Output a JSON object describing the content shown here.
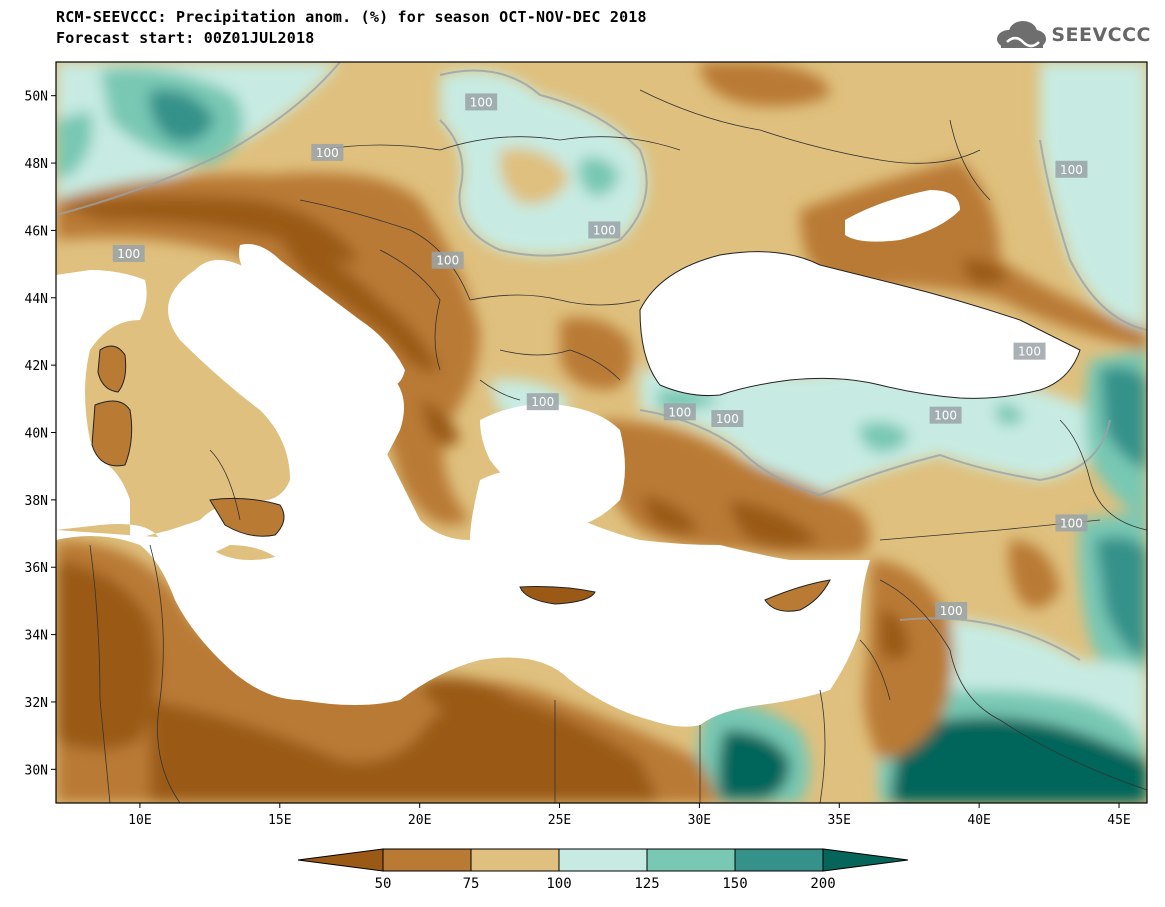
{
  "header": {
    "title_line_1": "RCM-SEEVCCC: Precipitation anom. (%) for season OCT-NOV-DEC 2018",
    "title_line_2": "Forecast start: 00Z01JUL2018"
  },
  "logo": {
    "text": "SEEVCCC",
    "icon": "cloud-icon"
  },
  "map": {
    "projection": "lat-lon",
    "lon_range": [
      7,
      46
    ],
    "lat_range": [
      29,
      51
    ],
    "x_ticks": [
      "10E",
      "15E",
      "20E",
      "25E",
      "30E",
      "35E",
      "40E",
      "45E"
    ],
    "x_tick_values": [
      10,
      15,
      20,
      25,
      30,
      35,
      40,
      45
    ],
    "y_ticks": [
      "30N",
      "32N",
      "34N",
      "36N",
      "38N",
      "40N",
      "42N",
      "44N",
      "46N",
      "48N",
      "50N"
    ],
    "y_tick_values": [
      30,
      32,
      34,
      36,
      38,
      40,
      42,
      44,
      46,
      48,
      50
    ],
    "sea_color": "#ffffff",
    "contour_labels": [
      {
        "text": "100",
        "lon": 22.2,
        "lat": 49.8
      },
      {
        "text": "100",
        "lon": 16.7,
        "lat": 48.3
      },
      {
        "text": "100",
        "lon": 9.6,
        "lat": 45.3
      },
      {
        "text": "100",
        "lon": 26.6,
        "lat": 46.0
      },
      {
        "text": "100",
        "lon": 21.0,
        "lat": 45.1
      },
      {
        "text": "100",
        "lon": 43.3,
        "lat": 47.8
      },
      {
        "text": "100",
        "lon": 41.8,
        "lat": 42.4
      },
      {
        "text": "100",
        "lon": 24.4,
        "lat": 40.9
      },
      {
        "text": "100",
        "lon": 29.3,
        "lat": 40.6
      },
      {
        "text": "100",
        "lon": 31.0,
        "lat": 40.4
      },
      {
        "text": "100",
        "lon": 38.8,
        "lat": 40.5
      },
      {
        "text": "100",
        "lon": 43.3,
        "lat": 37.3
      },
      {
        "text": "100",
        "lon": 39.0,
        "lat": 34.7
      }
    ]
  },
  "colorbar": {
    "colors": [
      "#9a5a16",
      "#b97a34",
      "#dfc07e",
      "#c7ebe2",
      "#78c8b4",
      "#35928a",
      "#06655a"
    ],
    "labels": [
      "50",
      "75",
      "100",
      "125",
      "150",
      "200"
    ]
  }
}
